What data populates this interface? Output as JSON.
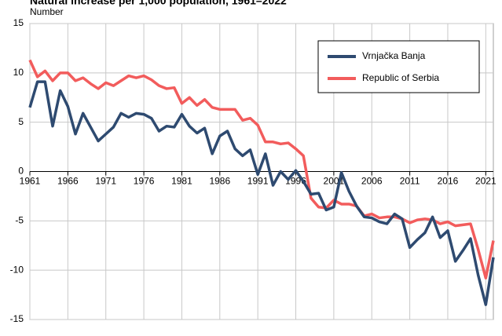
{
  "chart_data": {
    "type": "line",
    "title": "Natural increase per 1,000 population, 1961–2022",
    "y_label": "Number",
    "x": [
      1961,
      1962,
      1963,
      1964,
      1965,
      1966,
      1967,
      1968,
      1969,
      1970,
      1971,
      1972,
      1973,
      1974,
      1975,
      1976,
      1977,
      1978,
      1979,
      1980,
      1981,
      1982,
      1983,
      1984,
      1985,
      1986,
      1987,
      1988,
      1989,
      1990,
      1991,
      1992,
      1993,
      1994,
      1995,
      1996,
      1997,
      1998,
      1999,
      2000,
      2001,
      2002,
      2003,
      2004,
      2005,
      2006,
      2007,
      2008,
      2009,
      2010,
      2011,
      2012,
      2013,
      2014,
      2015,
      2016,
      2017,
      2018,
      2019,
      2020,
      2021,
      2022
    ],
    "series": [
      {
        "name": "Vrnjačka Banja",
        "color": "#2e4a70",
        "values": [
          6.5,
          9.1,
          9.1,
          4.6,
          8.2,
          6.6,
          3.8,
          5.9,
          4.5,
          3.1,
          3.8,
          4.5,
          5.9,
          5.5,
          5.9,
          5.8,
          5.4,
          4.1,
          4.6,
          4.5,
          5.8,
          4.6,
          3.9,
          4.4,
          1.8,
          3.6,
          4.1,
          2.3,
          1.6,
          2.2,
          -0.3,
          1.8,
          -1.4,
          0.0,
          -0.8,
          0.1,
          -1.0,
          -2.3,
          -2.2,
          -3.9,
          -3.6,
          -0.1,
          -2.0,
          -3.5,
          -4.6,
          -4.7,
          -5.1,
          -5.3,
          -4.3,
          -4.8,
          -7.7,
          -6.9,
          -6.2,
          -4.6,
          -6.7,
          -6.0,
          -9.1,
          -8.0,
          -6.8,
          -10.5,
          -13.5,
          -8.7
        ]
      },
      {
        "name": "Republic of Serbia",
        "color": "#f25c5c",
        "values": [
          11.3,
          9.6,
          10.2,
          9.2,
          10.0,
          10.0,
          9.2,
          9.5,
          8.9,
          8.4,
          9.0,
          8.7,
          9.2,
          9.7,
          9.5,
          9.7,
          9.3,
          8.7,
          8.4,
          8.5,
          6.9,
          7.5,
          6.7,
          7.3,
          6.5,
          6.3,
          6.3,
          6.3,
          5.2,
          5.4,
          4.7,
          3.0,
          3.0,
          2.8,
          2.9,
          2.3,
          1.6,
          -2.7,
          -3.6,
          -3.7,
          -2.9,
          -3.3,
          -3.3,
          -3.5,
          -4.5,
          -4.3,
          -4.7,
          -4.6,
          -4.6,
          -4.8,
          -5.2,
          -4.9,
          -4.8,
          -4.9,
          -5.3,
          -5.1,
          -5.5,
          -5.4,
          -5.3,
          -7.9,
          -10.8,
          -7.0
        ]
      }
    ],
    "xlim": [
      1961,
      2022
    ],
    "xticks": [
      1961,
      1966,
      1971,
      1976,
      1981,
      1986,
      1991,
      1996,
      2001,
      2006,
      2011,
      2016,
      2021
    ],
    "ylim": [
      -15,
      15
    ],
    "yticks": [
      -15,
      -10,
      -5,
      0,
      5,
      10,
      15
    ],
    "grid": true,
    "legend": "top-right"
  }
}
